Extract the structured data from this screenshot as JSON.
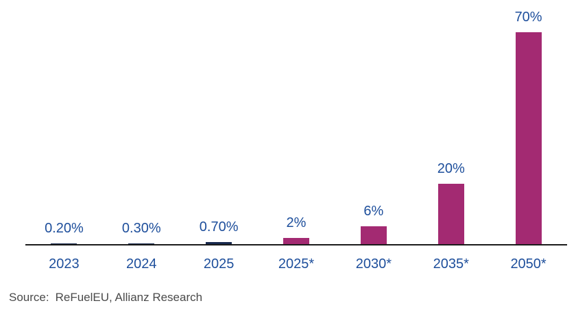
{
  "chart_data": {
    "type": "bar",
    "categories": [
      "2023",
      "2024",
      "2025",
      "2025*",
      "2030*",
      "2035*",
      "2050*"
    ],
    "values": [
      0.2,
      0.3,
      0.7,
      2,
      6,
      20,
      70
    ],
    "value_labels": [
      "0.20%",
      "0.30%",
      "0.70%",
      "2%",
      "6%",
      "20%",
      "70%"
    ],
    "bar_colors": [
      "#18294e",
      "#18294e",
      "#18294e",
      "#a32a72",
      "#a32a72",
      "#a32a72",
      "#a32a72"
    ],
    "title": "",
    "xlabel": "",
    "ylabel": "",
    "ylim": [
      0,
      70
    ],
    "unit": "%",
    "grid": false,
    "legend": "none",
    "value_labels_position": "above-bars"
  },
  "colors": {
    "label_text": "#1d4e9b",
    "axis_line": "#1a1a1a",
    "bar_actual": "#18294e",
    "bar_target": "#a32a72",
    "source_text": "#4a4a4a",
    "background": "#ffffff"
  },
  "source": {
    "prefix": "Source:",
    "text": "ReFuelEU, Allianz Research"
  }
}
